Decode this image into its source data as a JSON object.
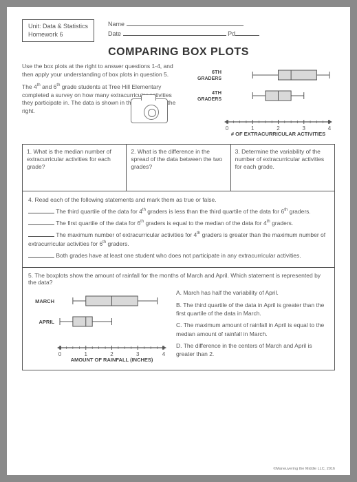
{
  "header": {
    "unit_line1": "Unit: Data & Statistics",
    "unit_line2": "Homework 6",
    "name_label": "Name",
    "date_label": "Date",
    "pd_label": "Pd"
  },
  "title": "COMPARING BOX PLOTS",
  "intro": {
    "p1": "Use the box plots at the right to answer questions 1-4, and then apply your understanding of box plots in question 5.",
    "p2_a": "The 4",
    "p2_b": " and 6",
    "p2_c": " grade students at Tree Hill Elementary completed a survey on how many extracurricular activities they participate in. The data is shown in the box plots at the right.",
    "sup_th": "th"
  },
  "chart1": {
    "label6": "6",
    "label6_sub": "GRADERS",
    "label4": "4",
    "label4_sub": "GRADERS",
    "sup_TH": "TH",
    "axis_title": "# OF EXTRACURRICULAR ACTIVITIES",
    "axis_min": 0,
    "axis_max": 4,
    "ticks": [
      "0",
      "1",
      "2",
      "3",
      "4"
    ],
    "bp6": {
      "min": 1.0,
      "q1": 2.0,
      "med": 2.5,
      "q3": 3.5,
      "max": 4.0
    },
    "bp4": {
      "min": 1.0,
      "q1": 1.5,
      "med": 2.0,
      "q3": 2.5,
      "max": 3.0
    },
    "colors": {
      "fill": "#d9d9d9",
      "line": "#555555"
    }
  },
  "q123": {
    "q1": "1. What is the median number of extracurricular activities for each grade?",
    "q2": "2. What is the difference in the spread of the data between the two grades?",
    "q3": "3. Determine the variability of the number of extracurricular activities for each grade."
  },
  "q4": {
    "lead": "4. Read each of the following statements and mark them as true or false.",
    "s1_a": " The third quartile of the data for 4",
    "s1_b": " graders is less than the third quartile of the data for 6",
    "s1_c": " graders.",
    "s2_a": " The first quartile of the data for 6",
    "s2_b": " graders is equal to the median of the data for 4",
    "s2_c": " graders.",
    "s3_a": " The maximum number of extracurricular activities for 4",
    "s3_b": " graders is greater than the maximum number of extracurricular activities for 6",
    "s3_c": " graders.",
    "s4": " Both grades have at least one student who does not participate in any extracurricular activities."
  },
  "q5": {
    "prompt": "5. The boxplots show the amount of rainfall for the months of March and April. Which statement is represented by the data?",
    "optA": "A. March has half the variability of April.",
    "optB": "B. The third quartile of the data in April is greater than the first quartile of the data in March.",
    "optC": "C. The maximum amount of rainfall in April is equal to the median amount of rainfall in March.",
    "optD": "D. The difference in the centers of March and April is greater than 2.",
    "label_march": "MARCH",
    "label_april": "APRIL",
    "axis_title": "AMOUNT OF RAINFALL (INCHES)",
    "axis_min": 0,
    "axis_max": 4,
    "ticks": [
      "0",
      "1",
      "2",
      "3",
      "4"
    ],
    "bp_march": {
      "min": 0.5,
      "q1": 1.0,
      "med": 2.0,
      "q3": 3.0,
      "max": 3.75
    },
    "bp_april": {
      "min": 0.0,
      "q1": 0.5,
      "med": 1.0,
      "q3": 1.25,
      "max": 2.0
    },
    "colors": {
      "fill": "#d9d9d9",
      "line": "#555555"
    }
  },
  "copyright": "©Maneuvering the Middle LLC, 2016"
}
